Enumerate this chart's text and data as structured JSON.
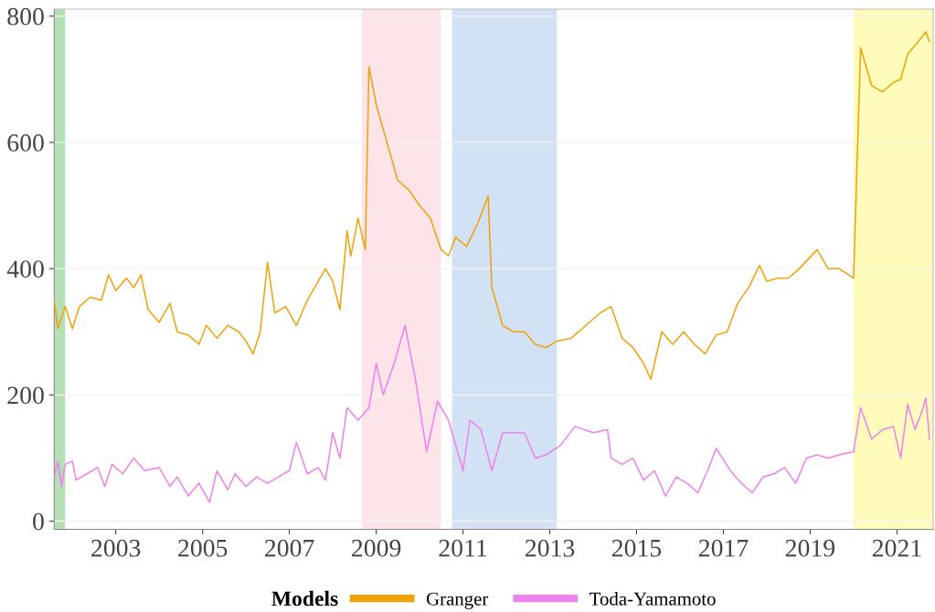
{
  "chart_data": {
    "type": "line",
    "legend_title": "Models",
    "legend": "bottom",
    "grid": "y",
    "marker": "none",
    "line_style": "solid",
    "xlim": [
      "2001-08",
      "2021-11"
    ],
    "xticks": [
      "2003",
      "2005",
      "2007",
      "2009",
      "2011",
      "2013",
      "2015",
      "2017",
      "2019",
      "2021"
    ],
    "ylim": [
      -13,
      811
    ],
    "yticks": [
      0,
      200,
      400,
      600,
      800
    ],
    "bands": [
      {
        "axis": "x",
        "from": "2001-08",
        "to": "2001-11",
        "color": "#b5dfb5"
      },
      {
        "axis": "x",
        "from": "2008-09",
        "to": "2010-07",
        "color": "#fde4e8"
      },
      {
        "axis": "x",
        "from": "2010-10",
        "to": "2013-03",
        "color": "#d3e1f5"
      },
      {
        "axis": "x",
        "from": "2020-01",
        "to": "2021-11",
        "color": "#fffcbb"
      }
    ],
    "series": [
      {
        "name": "Granger",
        "color": "#f0a20a",
        "x": [
          "2001-08",
          "2001-09",
          "2001-11",
          "2002-01",
          "2002-03",
          "2002-06",
          "2002-09",
          "2002-11",
          "2003-01",
          "2003-04",
          "2003-06",
          "2003-08",
          "2003-10",
          "2004-01",
          "2004-04",
          "2004-06",
          "2004-09",
          "2004-12",
          "2005-02",
          "2005-05",
          "2005-08",
          "2005-11",
          "2006-01",
          "2006-03",
          "2006-05",
          "2006-07",
          "2006-09",
          "2006-12",
          "2007-03",
          "2007-06",
          "2007-09",
          "2007-11",
          "2008-01",
          "2008-03",
          "2008-05",
          "2008-06",
          "2008-08",
          "2008-10",
          "2008-11",
          "2009-01",
          "2009-04",
          "2009-07",
          "2009-10",
          "2010-01",
          "2010-04",
          "2010-07",
          "2010-09",
          "2010-11",
          "2011-02",
          "2011-05",
          "2011-08",
          "2011-09",
          "2011-12",
          "2012-03",
          "2012-06",
          "2012-09",
          "2012-12",
          "2013-03",
          "2013-07",
          "2013-10",
          "2014-03",
          "2014-06",
          "2014-09",
          "2014-12",
          "2015-03",
          "2015-05",
          "2015-08",
          "2015-11",
          "2016-02",
          "2016-05",
          "2016-08",
          "2016-11",
          "2017-02",
          "2017-05",
          "2017-08",
          "2017-11",
          "2018-01",
          "2018-04",
          "2018-07",
          "2018-10",
          "2019-03",
          "2019-06",
          "2019-09",
          "2020-01",
          "2020-03",
          "2020-06",
          "2020-09",
          "2020-12",
          "2021-02",
          "2021-04",
          "2021-07",
          "2021-09",
          "2021-10"
        ],
        "values": [
          350,
          305,
          340,
          305,
          340,
          355,
          350,
          390,
          365,
          385,
          370,
          390,
          335,
          315,
          345,
          300,
          295,
          280,
          310,
          290,
          310,
          300,
          285,
          265,
          300,
          410,
          330,
          340,
          310,
          350,
          380,
          400,
          380,
          335,
          460,
          420,
          480,
          430,
          720,
          660,
          600,
          540,
          525,
          500,
          480,
          430,
          420,
          450,
          435,
          470,
          515,
          370,
          310,
          300,
          300,
          280,
          275,
          285,
          290,
          305,
          330,
          340,
          290,
          275,
          250,
          225,
          300,
          280,
          300,
          280,
          265,
          295,
          300,
          345,
          370,
          405,
          380,
          385,
          385,
          400,
          430,
          400,
          400,
          385,
          750,
          690,
          680,
          695,
          700,
          740,
          760,
          775,
          760
        ]
      },
      {
        "name": "Toda-Yamamoto",
        "color": "#ee82ee",
        "x": [
          "2001-08",
          "2001-09",
          "2001-10",
          "2001-11",
          "2002-01",
          "2002-02",
          "2002-05",
          "2002-08",
          "2002-10",
          "2002-12",
          "2003-03",
          "2003-06",
          "2003-09",
          "2004-01",
          "2004-04",
          "2004-06",
          "2004-09",
          "2004-12",
          "2005-03",
          "2005-05",
          "2005-08",
          "2005-10",
          "2006-01",
          "2006-04",
          "2006-07",
          "2006-10",
          "2007-01",
          "2007-03",
          "2007-06",
          "2007-09",
          "2007-11",
          "2008-01",
          "2008-03",
          "2008-05",
          "2008-08",
          "2008-11",
          "2009-01",
          "2009-03",
          "2009-06",
          "2009-09",
          "2009-12",
          "2010-03",
          "2010-06",
          "2010-09",
          "2010-11",
          "2011-01",
          "2011-03",
          "2011-06",
          "2011-09",
          "2011-12",
          "2012-03",
          "2012-06",
          "2012-09",
          "2012-12",
          "2013-04",
          "2013-08",
          "2014-01",
          "2014-05",
          "2014-06",
          "2014-09",
          "2014-12",
          "2015-03",
          "2015-06",
          "2015-09",
          "2015-12",
          "2016-03",
          "2016-06",
          "2016-09",
          "2016-11",
          "2017-03",
          "2017-06",
          "2017-09",
          "2017-12",
          "2018-03",
          "2018-06",
          "2018-09",
          "2018-12",
          "2019-03",
          "2019-06",
          "2019-09",
          "2020-01",
          "2020-03",
          "2020-06",
          "2020-09",
          "2020-12",
          "2021-02",
          "2021-04",
          "2021-06",
          "2021-08",
          "2021-09",
          "2021-10"
        ],
        "values": [
          70,
          95,
          55,
          90,
          95,
          65,
          75,
          85,
          55,
          90,
          75,
          100,
          80,
          85,
          55,
          70,
          40,
          60,
          30,
          80,
          50,
          75,
          55,
          70,
          60,
          70,
          80,
          125,
          75,
          85,
          65,
          140,
          100,
          180,
          160,
          180,
          250,
          200,
          250,
          310,
          220,
          110,
          190,
          160,
          120,
          80,
          160,
          145,
          80,
          140,
          140,
          140,
          100,
          105,
          120,
          150,
          140,
          145,
          100,
          90,
          100,
          65,
          80,
          40,
          70,
          60,
          45,
          85,
          115,
          80,
          60,
          45,
          70,
          75,
          85,
          60,
          100,
          105,
          100,
          105,
          110,
          180,
          130,
          145,
          150,
          100,
          185,
          145,
          175,
          195,
          130
        ]
      }
    ]
  }
}
